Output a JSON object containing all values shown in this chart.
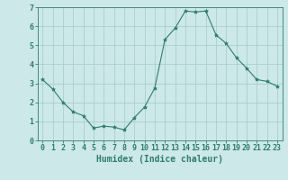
{
  "x": [
    0,
    1,
    2,
    3,
    4,
    5,
    6,
    7,
    8,
    9,
    10,
    11,
    12,
    13,
    14,
    15,
    16,
    17,
    18,
    19,
    20,
    21,
    22,
    23
  ],
  "y": [
    3.2,
    2.7,
    2.0,
    1.5,
    1.3,
    0.65,
    0.75,
    0.7,
    0.55,
    1.2,
    1.75,
    2.75,
    5.3,
    5.9,
    6.8,
    6.75,
    6.8,
    5.55,
    5.1,
    4.35,
    3.8,
    3.2,
    3.1,
    2.85
  ],
  "line_color": "#2e7d6e",
  "marker": "*",
  "marker_size": 3,
  "bg_color": "#cce8e8",
  "grid_color": "#aacece",
  "xlabel": "Humidex (Indice chaleur)",
  "xlim": [
    -0.5,
    23.5
  ],
  "ylim": [
    0,
    7
  ],
  "yticks": [
    0,
    1,
    2,
    3,
    4,
    5,
    6,
    7
  ],
  "xticks": [
    0,
    1,
    2,
    3,
    4,
    5,
    6,
    7,
    8,
    9,
    10,
    11,
    12,
    13,
    14,
    15,
    16,
    17,
    18,
    19,
    20,
    21,
    22,
    23
  ],
  "xtick_labels": [
    "0",
    "1",
    "2",
    "3",
    "4",
    "5",
    "6",
    "7",
    "8",
    "9",
    "10",
    "11",
    "12",
    "13",
    "14",
    "15",
    "16",
    "17",
    "18",
    "19",
    "20",
    "21",
    "22",
    "23"
  ],
  "tick_color": "#2e7d6e",
  "label_color": "#2e7d6e",
  "tick_fontsize": 6,
  "xlabel_fontsize": 7
}
